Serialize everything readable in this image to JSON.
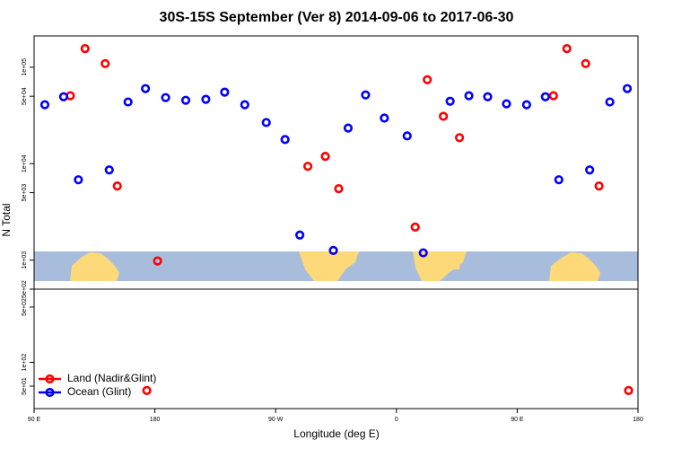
{
  "chart_data": {
    "type": "scatter",
    "title": "30S-15S September (Ver 8)   2014-09-06 to 2017-06-30",
    "xlabel": "Longitude (deg E)",
    "ylabel": "N Total",
    "log_y": true,
    "legend": "bottom-left",
    "xlim": [
      90,
      540
    ],
    "xticks": [
      {
        "value": 90,
        "label": "90 E"
      },
      {
        "value": 180,
        "label": "180"
      },
      {
        "value": 270,
        "label": "90 W"
      },
      {
        "value": 360,
        "label": "0"
      },
      {
        "value": 450,
        "label": "90 E"
      },
      {
        "value": 540,
        "label": "180"
      }
    ],
    "panels": [
      {
        "ylim": [
          500,
          211000
        ],
        "yticks": [
          {
            "value": 500,
            "label": "5e+02"
          },
          {
            "value": 1000,
            "label": "1e+03"
          },
          {
            "value": 5000,
            "label": "5e+03"
          },
          {
            "value": 10000,
            "label": "1e+04"
          },
          {
            "value": 50000,
            "label": "5e+04"
          },
          {
            "value": 100000,
            "label": "1e+05"
          }
        ]
      },
      {
        "ylim": [
          26,
          843
        ],
        "yticks": [
          {
            "value": 50,
            "label": "5e+01"
          },
          {
            "value": 100,
            "label": "1e+02"
          },
          {
            "value": 500,
            "label": "5e+02"
          }
        ]
      }
    ],
    "series": [
      {
        "name": "Land (Nadir&Glint)",
        "color": "#ff0000",
        "x": [
          117,
          128,
          143,
          152,
          174,
          182,
          294,
          307,
          317,
          374,
          383,
          395,
          407,
          477,
          487,
          501,
          511,
          533
        ],
        "values": [
          50600,
          156000,
          109000,
          5870,
          44,
          980,
          9380,
          11900,
          5500,
          2200,
          74200,
          31000,
          18600,
          50600,
          156000,
          109000,
          5870,
          44
        ]
      },
      {
        "name": "Ocean (Glint)",
        "color": "#0000ff",
        "x": [
          98,
          112,
          123,
          146,
          160,
          173,
          188,
          203,
          218,
          232,
          247,
          263,
          277,
          288,
          313,
          324,
          337,
          351,
          368,
          380,
          400,
          414,
          428,
          442,
          457,
          471,
          481,
          504,
          519,
          532
        ],
        "values": [
          40800,
          49400,
          6810,
          8610,
          43600,
          60000,
          48400,
          45400,
          46400,
          55100,
          40800,
          26700,
          17800,
          1820,
          1260,
          23400,
          51600,
          29700,
          19400,
          1190,
          44400,
          50600,
          49400,
          41700,
          40800,
          49400,
          6810,
          8610,
          43600,
          60000
        ]
      }
    ]
  }
}
